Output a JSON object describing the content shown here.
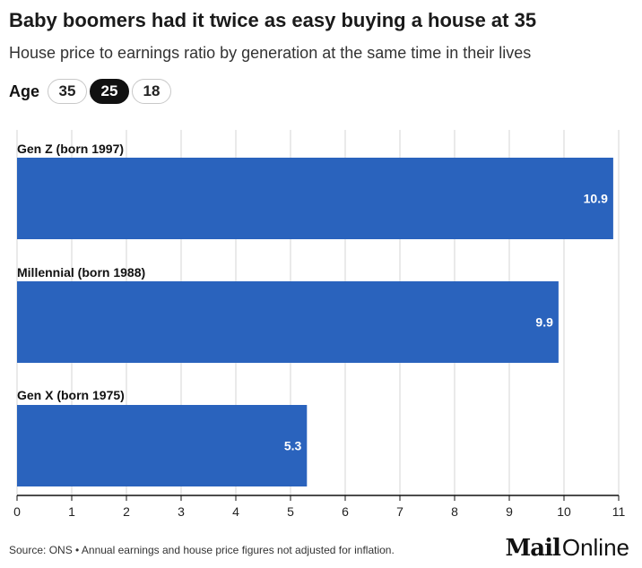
{
  "title": "Baby boomers had it twice as easy buying a house at 35",
  "subtitle": "House price to earnings ratio by generation at the same time in their lives",
  "age_selector": {
    "label": "Age",
    "options": [
      "35",
      "25",
      "18"
    ],
    "selected": "25"
  },
  "chart_data": {
    "type": "bar",
    "orientation": "horizontal",
    "categories": [
      "Gen Z (born 1997)",
      "Millennial (born 1988)",
      "Gen X (born 1975)"
    ],
    "values": [
      10.9,
      9.9,
      5.3
    ],
    "value_labels": [
      "10.9",
      "9.9",
      "5.3"
    ],
    "xlim": [
      0,
      11
    ],
    "xticks": [
      0,
      1,
      2,
      3,
      4,
      5,
      6,
      7,
      8,
      9,
      10,
      11
    ],
    "grid": true,
    "bar_color": "#2a63bd"
  },
  "footer": {
    "source": "Source: ONS • Annual earnings and house price figures not adjusted for inflation."
  },
  "logo": {
    "part1": "Mail",
    "part2": "Online"
  }
}
